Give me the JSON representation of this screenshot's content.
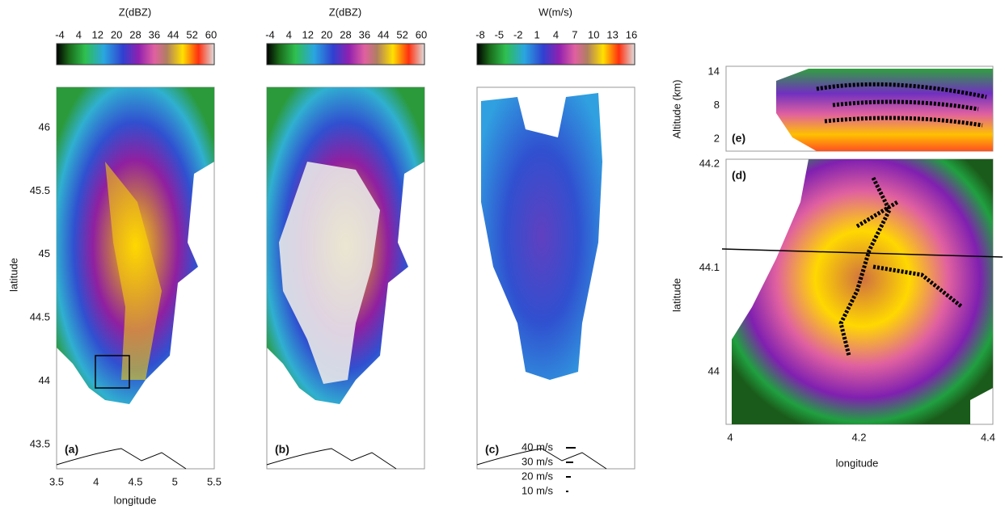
{
  "colorbars": [
    {
      "title": "Z(dBZ)",
      "ticks": [
        -4,
        4,
        12,
        20,
        28,
        36,
        44,
        52,
        60
      ]
    },
    {
      "title": "Z(dBZ)",
      "ticks": [
        -4,
        4,
        12,
        20,
        28,
        36,
        44,
        52,
        60
      ]
    },
    {
      "title": "W(m/s)",
      "ticks": [
        -8,
        -5,
        -2,
        1,
        4,
        7,
        10,
        13,
        16
      ]
    }
  ],
  "panels": [
    {
      "label": "(a)",
      "xlabel": "longitude",
      "ylabel": "latitude",
      "xticks": [
        3.5,
        4,
        4.5,
        5,
        5.5
      ],
      "yticks": [
        46,
        45.5,
        45,
        44.5,
        44,
        43.5
      ]
    },
    {
      "label": "(b)"
    },
    {
      "label": "(c)",
      "legend": [
        "40 m/s",
        "30 m/s",
        "20 m/s",
        "10 m/s"
      ]
    },
    {
      "label": "(e)",
      "ylabel": "Altitude (km)",
      "yticks": [
        14,
        8,
        2
      ]
    },
    {
      "label": "(d)",
      "xlabel": "longitude",
      "ylabel": "latitude",
      "xticks": [
        4,
        4.2,
        4.4
      ],
      "yticks": [
        44.2,
        44.1,
        44
      ]
    }
  ]
}
